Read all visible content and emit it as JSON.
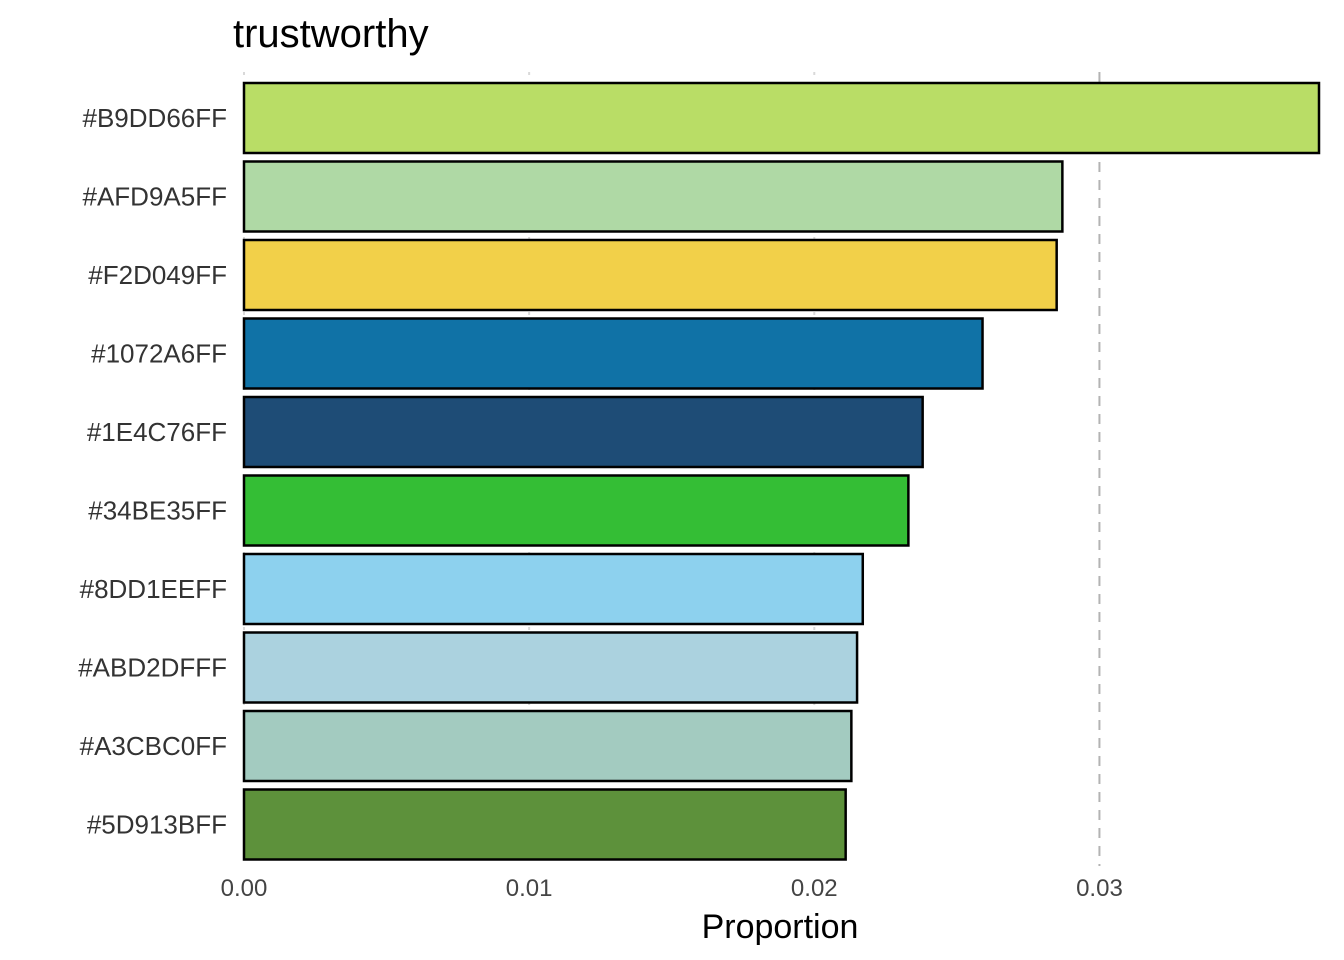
{
  "chart_data": {
    "type": "bar",
    "orientation": "horizontal",
    "title": "trustworthy",
    "xlabel": "Proportion",
    "ylabel": "",
    "xlim": [
      0,
      0.0377
    ],
    "xticks": [
      0,
      0.01,
      0.02,
      0.03
    ],
    "xtick_labels": [
      "0.00",
      "0.01",
      "0.02",
      "0.03"
    ],
    "reference_line": 0.03,
    "categories": [
      "#B9DD66FF",
      "#AFD9A5FF",
      "#F2D049FF",
      "#1072A6FF",
      "#1E4C76FF",
      "#34BE35FF",
      "#8DD1EEFF",
      "#ABD2DFFF",
      "#A3CBC0FF",
      "#5D913BFF"
    ],
    "values": [
      0.0377,
      0.0287,
      0.0285,
      0.0259,
      0.0238,
      0.0233,
      0.0217,
      0.0215,
      0.0213,
      0.0211
    ],
    "colors": [
      "#B9DD66",
      "#AFD9A5",
      "#F2D049",
      "#1072A6",
      "#1E4C76",
      "#34BE35",
      "#8DD1EE",
      "#ABD2DF",
      "#A3CBC0",
      "#5D913B"
    ],
    "grid": true,
    "legend": "none"
  }
}
